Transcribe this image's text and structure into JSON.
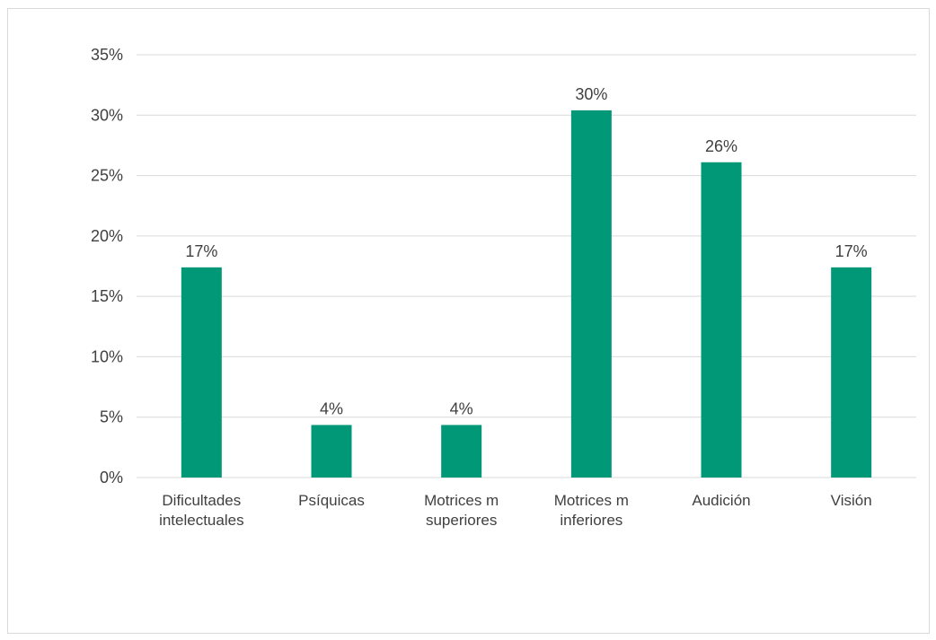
{
  "chart_data": {
    "type": "bar",
    "title": "",
    "xlabel": "",
    "ylabel": "",
    "categories": [
      [
        "Dificultades",
        "intelectuales"
      ],
      [
        "Psíquicas"
      ],
      [
        "Motrices m",
        "superiores"
      ],
      [
        "Motrices m",
        "inferiores"
      ],
      [
        "Audición"
      ],
      [
        "Visión"
      ]
    ],
    "values": [
      17.4,
      4.35,
      4.35,
      30.4,
      26.1,
      17.4
    ],
    "data_labels": [
      "17%",
      "4%",
      "4%",
      "30%",
      "26%",
      "17%"
    ],
    "ylim": [
      0,
      35
    ],
    "yticks": [
      0,
      5,
      10,
      15,
      20,
      25,
      30,
      35
    ],
    "ytick_labels": [
      "0%",
      "5%",
      "10%",
      "15%",
      "20%",
      "25%",
      "30%",
      "35%"
    ],
    "grid": true,
    "legend": "none",
    "bar_color": "#009877",
    "grid_color": "#d9d9d9"
  }
}
